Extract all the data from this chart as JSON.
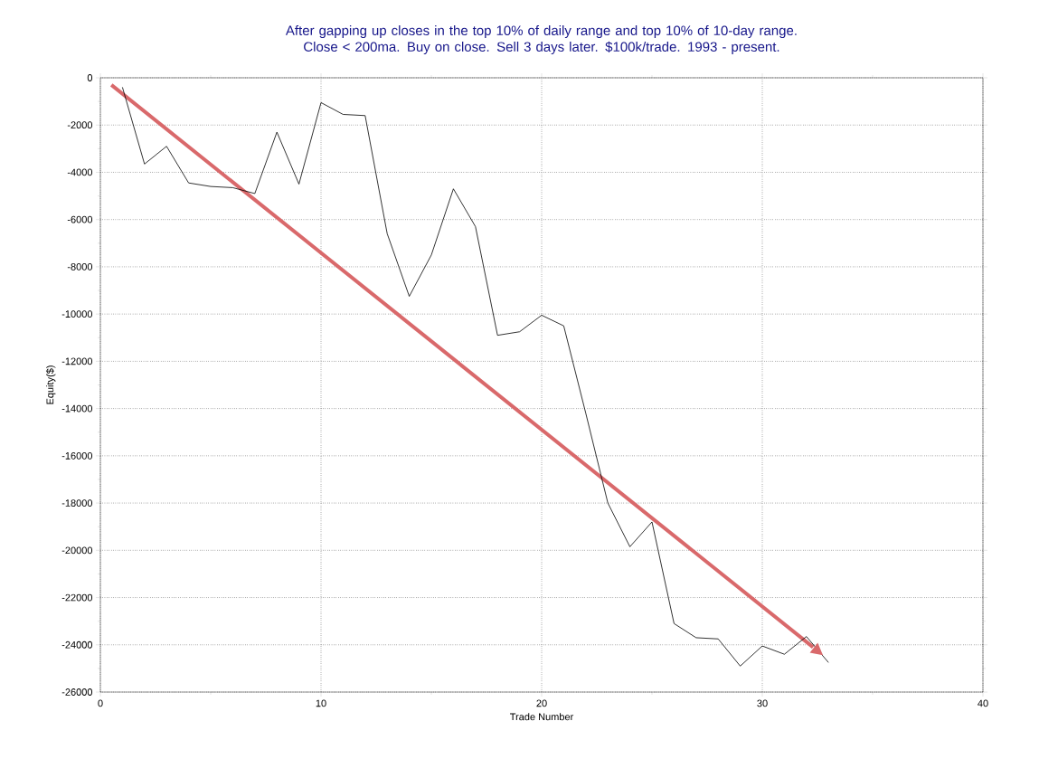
{
  "chart_data": {
    "type": "line",
    "title": "After gapping up closes in the top 10% of daily range and top 10% of 10-day range.\nClose < 200ma. Buy on close. Sell 3 days later. $100k/trade. 1993 - present.",
    "xlabel": "Trade Number",
    "ylabel": "Equity($)",
    "series": [
      {
        "color": "#000000",
        "x": [
          1,
          2,
          3,
          4,
          5,
          6,
          7,
          8,
          9,
          10,
          11,
          12,
          13,
          14,
          15,
          16,
          17,
          18,
          19,
          20,
          21,
          22,
          23,
          24,
          25,
          26,
          27,
          28,
          29,
          30,
          31,
          32,
          33
        ],
        "values": [
          -400,
          -3650,
          -2900,
          -4450,
          -4600,
          -4650,
          -4900,
          -2300,
          -4500,
          -1050,
          -1550,
          -1600,
          -6600,
          -9250,
          -7500,
          -4700,
          -6300,
          -10900,
          -10750,
          -10050,
          -10500,
          -14200,
          -18000,
          -19850,
          -18800,
          -23100,
          -23700,
          -23750,
          -24900,
          -24050,
          -24400,
          -23650,
          -24750
        ]
      },
      {
        "type": "line",
        "color": "#d9696b",
        "x": [
          0.5,
          32.3
        ],
        "values": [
          -300,
          -24100
        ]
      }
    ],
    "xlim": [
      0,
      40
    ],
    "xticks": [
      0,
      10,
      20,
      30,
      40
    ],
    "ylim": [
      -26000,
      0
    ],
    "yticks": [
      -26000,
      -24000,
      -22000,
      -20000,
      -18000,
      -16000,
      -14000,
      -12000,
      -10000,
      -8000,
      -6000,
      -4000,
      -2000,
      0
    ],
    "grid": true,
    "line_style": "solid"
  }
}
